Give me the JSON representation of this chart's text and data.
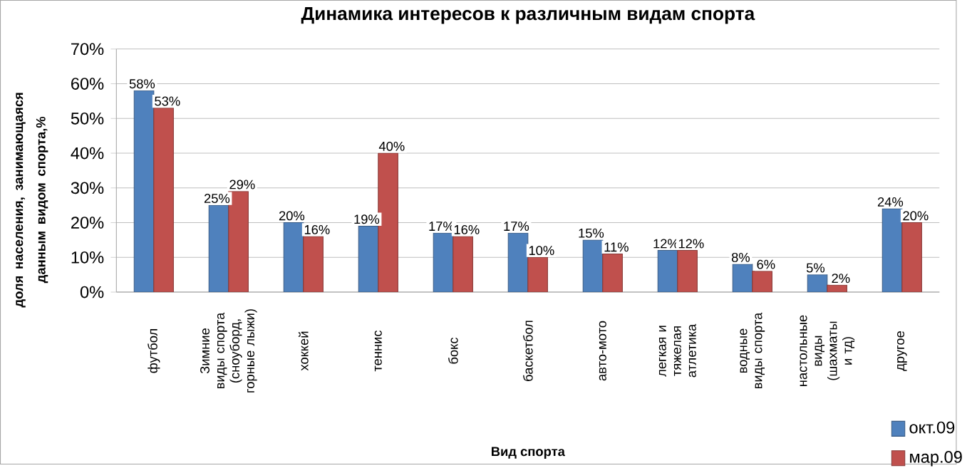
{
  "chart_data": {
    "type": "bar",
    "title": "Динамика интересов к различным видам спорта",
    "xlabel": "Вид спорта",
    "ylabel": "доля населения, занимающаяся данным видом спорта,%",
    "categories": [
      "футбол",
      "Зимние виды спорта (сноуборд, горные лыжи)",
      "хоккей",
      "теннис",
      "бокс",
      "баскетбол",
      "авто-мото",
      "легкая и тяжелая атлетика",
      "водные виды спорта",
      "настольные виды (шахматы и тд)",
      "другое"
    ],
    "series": [
      {
        "name": "окт.09",
        "color": "#4f81bd",
        "values": [
          58,
          25,
          20,
          19,
          17,
          17,
          15,
          12,
          8,
          5,
          24
        ],
        "value_labels": [
          "58%",
          "25%",
          "20%",
          "19%",
          "17%",
          "17%",
          "15%",
          "12%",
          "8%",
          "5%",
          "24%"
        ]
      },
      {
        "name": "мар.09",
        "color": "#c0504d",
        "values": [
          53,
          29,
          16,
          40,
          16,
          10,
          11,
          12,
          6,
          2,
          20
        ],
        "value_labels": [
          "53%",
          "29%",
          "16%",
          "40%",
          "16%",
          "10%",
          "11%",
          "12%",
          "6%",
          "2%",
          "20%"
        ]
      }
    ],
    "ylim": [
      0,
      70
    ],
    "yticks": [
      {
        "value": 0,
        "label": "0%"
      },
      {
        "value": 10,
        "label": "10%"
      },
      {
        "value": 20,
        "label": "20%"
      },
      {
        "value": 30,
        "label": "30%"
      },
      {
        "value": 40,
        "label": "40%"
      },
      {
        "value": 50,
        "label": "50%"
      },
      {
        "value": 60,
        "label": "60%"
      },
      {
        "value": 70,
        "label": "70%"
      }
    ],
    "grid": "y",
    "legend": "bottom right"
  }
}
